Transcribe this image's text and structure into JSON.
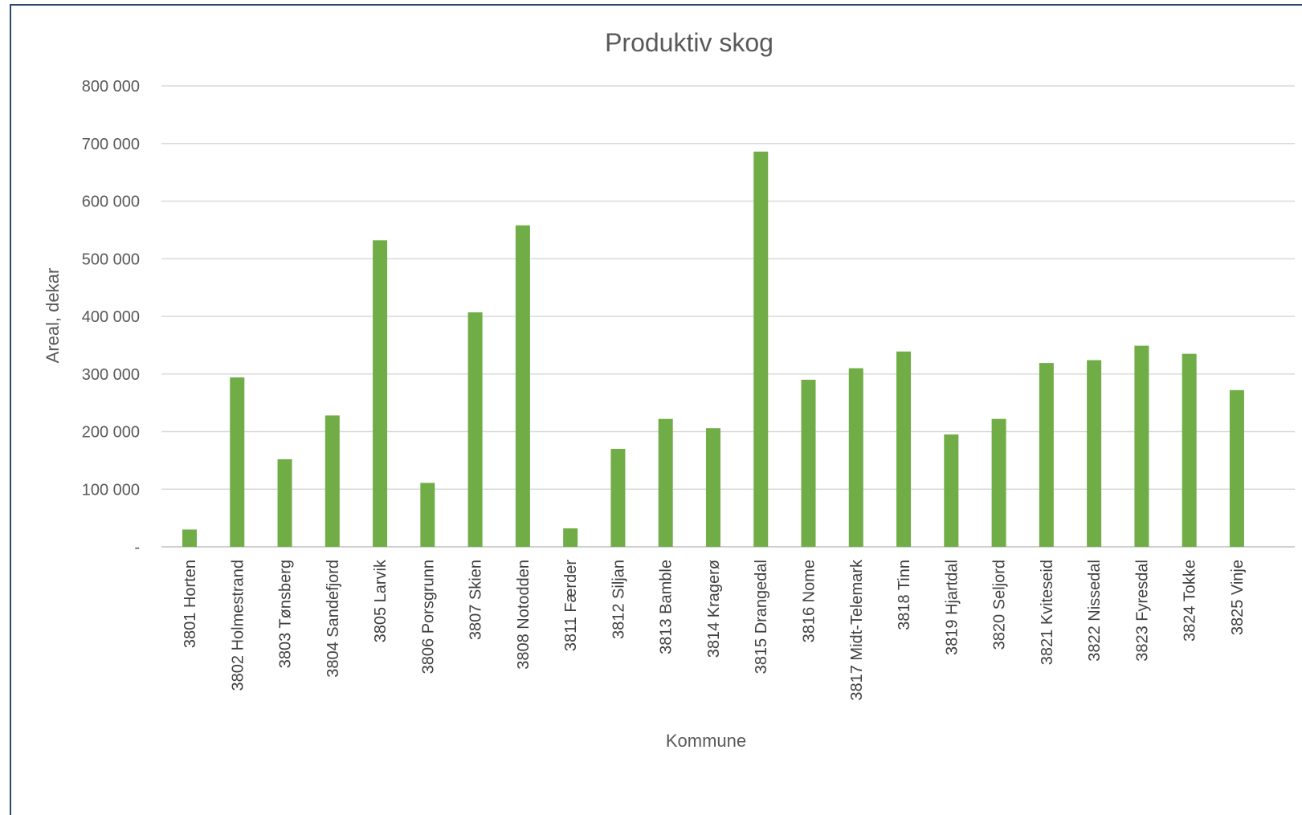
{
  "chart_data": {
    "type": "bar",
    "title": "Produktiv skog",
    "xlabel": "Kommune",
    "ylabel": "Areal, dekar",
    "ylim": [
      0,
      800000
    ],
    "yticks": [
      0,
      100000,
      200000,
      300000,
      400000,
      500000,
      600000,
      700000,
      800000
    ],
    "ytick_labels": [
      "-",
      "100 000",
      "200 000",
      "300 000",
      "400 000",
      "500 000",
      "600 000",
      "700 000",
      "800 000"
    ],
    "grid": true,
    "legend": "none",
    "bar_color": "#70ad47",
    "categories": [
      "3801 Horten",
      "3802 Holmestrand",
      "3803 Tønsberg",
      "3804 Sandefjord",
      "3805 Larvik",
      "3806 Porsgrunn",
      "3807 Skien",
      "3808 Notodden",
      "3811 Færder",
      "3812 Siljan",
      "3813 Bamble",
      "3814 Kragerø",
      "3815 Drangedal",
      "3816 Nome",
      "3817 Midt-Telemark",
      "3818 Tinn",
      "3819 Hjartdal",
      "3820 Seljord",
      "3821 Kviteseid",
      "3822 Nissedal",
      "3823 Fyresdal",
      "3824 Tokke",
      "3825 Vinje"
    ],
    "values": [
      30000,
      294000,
      152000,
      228000,
      532000,
      111000,
      407000,
      558000,
      32000,
      170000,
      222000,
      206000,
      686000,
      290000,
      310000,
      339000,
      195000,
      222000,
      319000,
      324000,
      349000,
      335000,
      272000
    ]
  }
}
